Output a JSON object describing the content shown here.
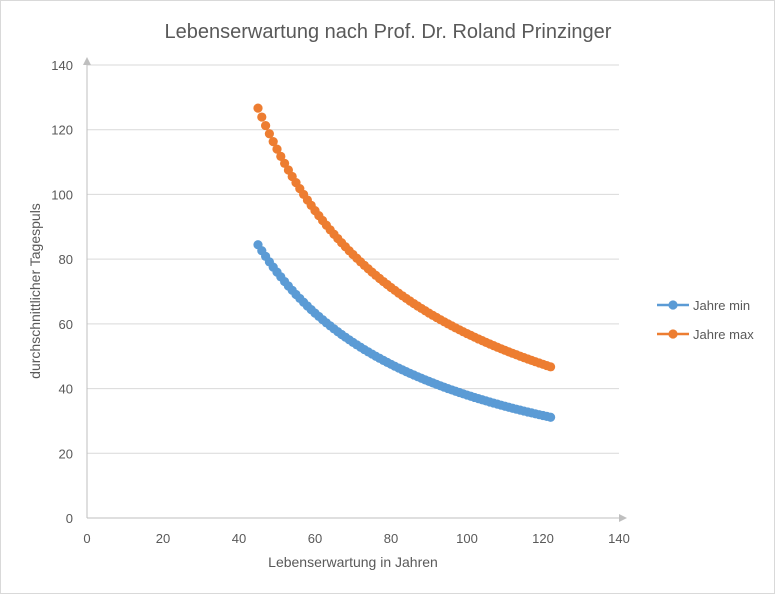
{
  "chart_data": {
    "type": "scatter",
    "title": "Lebenserwartung  nach Prof. Dr. Roland Prinzinger",
    "xlabel": "Lebenserwartung in Jahren",
    "ylabel": "durchschnittlicher Tagespuls",
    "xlim": [
      0,
      140
    ],
    "ylim": [
      0,
      140
    ],
    "x_ticks": [
      0,
      20,
      40,
      60,
      80,
      100,
      120,
      140
    ],
    "y_ticks": [
      0,
      20,
      40,
      60,
      80,
      100,
      120,
      140
    ],
    "grid": "horizontal",
    "legend_position": "right",
    "series": [
      {
        "name": "Jahre min",
        "color": "#5b9bd5",
        "formula_k": 3800,
        "x_start": 45,
        "x_end": 122,
        "x_step": 1
      },
      {
        "name": "Jahre max",
        "color": "#ed7d31",
        "formula_k": 5700,
        "x_start": 45,
        "x_end": 122,
        "x_step": 1
      }
    ]
  }
}
